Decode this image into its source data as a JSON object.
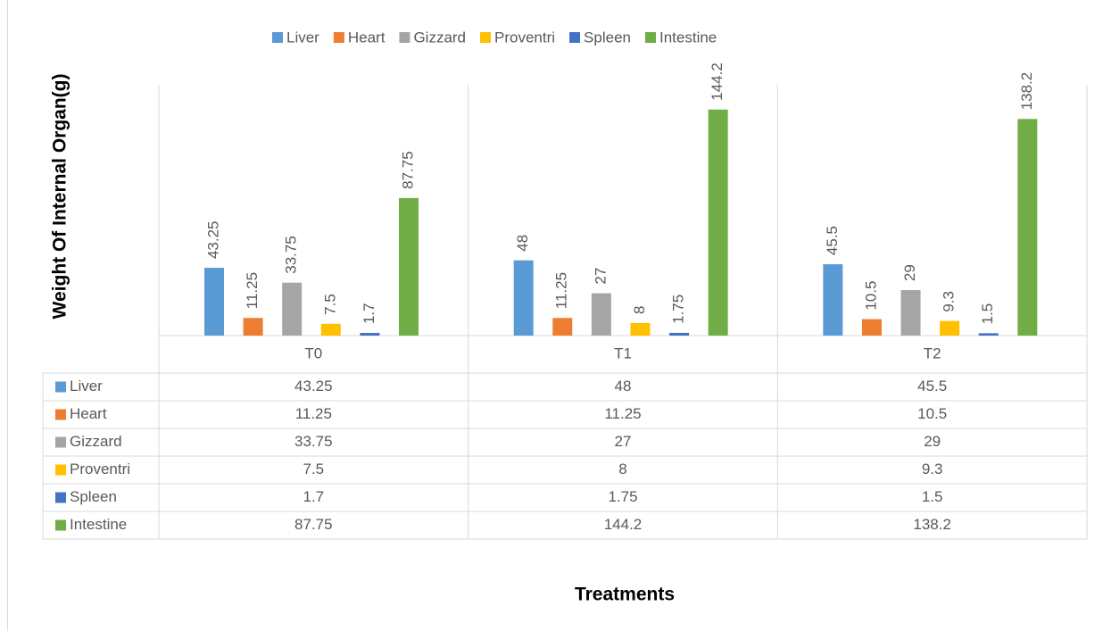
{
  "chart_data": {
    "type": "bar",
    "ylabel": "Weight Of Internal Organ(g)",
    "xlabel": "Treatments",
    "categories": [
      "T0",
      "T1",
      "T2"
    ],
    "series": [
      {
        "name": "Liver",
        "color": "#5b9bd5",
        "values": [
          43.25,
          48,
          45.5
        ]
      },
      {
        "name": "Heart",
        "color": "#ed7d31",
        "values": [
          11.25,
          11.25,
          10.5
        ]
      },
      {
        "name": "Gizzard",
        "color": "#a5a5a5",
        "values": [
          33.75,
          27,
          29
        ]
      },
      {
        "name": "Proventri",
        "color": "#ffc000",
        "values": [
          7.5,
          8,
          9.3
        ]
      },
      {
        "name": "Spleen",
        "color": "#4472c4",
        "values": [
          1.7,
          1.75,
          1.5
        ]
      },
      {
        "name": "Intestine",
        "color": "#70ad47",
        "values": [
          87.75,
          144.2,
          138.2
        ]
      }
    ],
    "ylim": [
      0,
      160
    ],
    "legend": "top",
    "data_table": true
  }
}
